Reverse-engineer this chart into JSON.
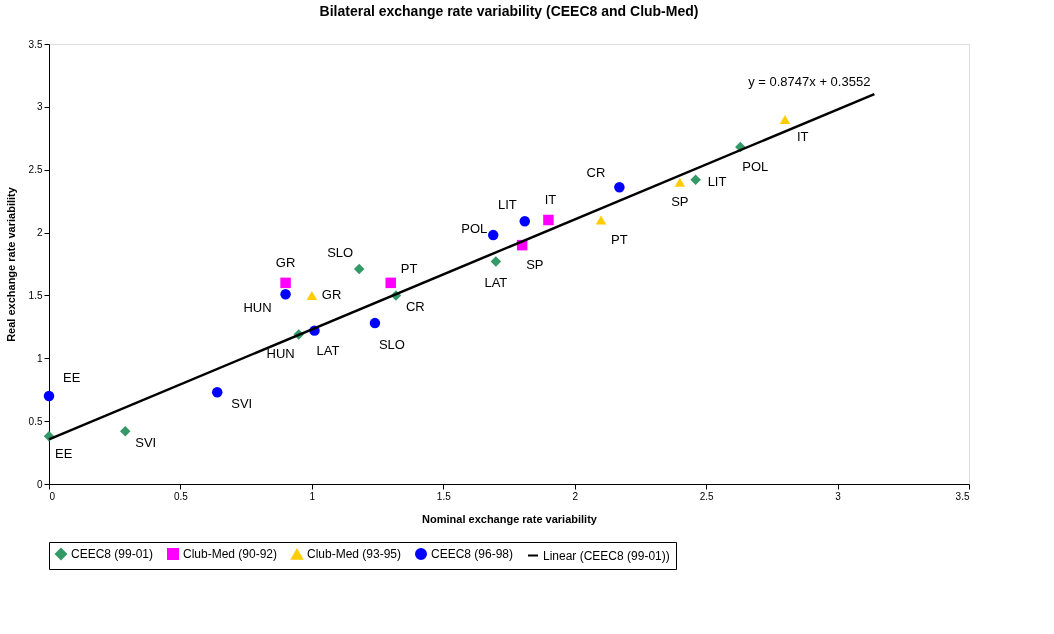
{
  "chart_data": {
    "type": "scatter",
    "title": "Bilateral exchange rate variability (CEEC8 and Club-Med)",
    "xlabel": "Nominal exchange rate variability",
    "ylabel": "Real exchange rate variability",
    "xlim": [
      0,
      3.5
    ],
    "ylim": [
      0,
      3.5
    ],
    "xticks": [
      0,
      0.5,
      1,
      1.5,
      2,
      2.5,
      3,
      3.5
    ],
    "yticks": [
      0,
      0.5,
      1,
      1.5,
      2,
      2.5,
      3,
      3.5
    ],
    "grid": false,
    "legend": "bottom",
    "series": [
      {
        "name": "CEEC8 (99-01)",
        "marker": "diamond",
        "color": "#339966",
        "x": [
          0,
          0.29,
          0.95,
          1.18,
          1.32,
          1.7,
          2.46,
          2.63
        ],
        "values": [
          0.38,
          0.42,
          1.19,
          1.71,
          1.5,
          1.77,
          2.42,
          2.68
        ]
      },
      {
        "name": "Club-Med (90-92)",
        "marker": "square",
        "color": "#ff00ff",
        "x": [
          0.9,
          1.3,
          1.8,
          1.9
        ],
        "values": [
          1.6,
          1.6,
          1.9,
          2.1
        ]
      },
      {
        "name": "Club-Med (93-95)",
        "marker": "triangle",
        "color": "#ffcc00",
        "x": [
          1.0,
          2.1,
          2.4,
          2.8
        ],
        "values": [
          1.5,
          2.1,
          2.4,
          2.9
        ]
      },
      {
        "name": "CEEC8 (96-98)",
        "marker": "circle",
        "color": "#0000ff",
        "x": [
          0,
          0.64,
          0.9,
          1.01,
          1.24,
          1.69,
          1.81,
          2.17
        ],
        "values": [
          0.7,
          0.73,
          1.51,
          1.22,
          1.28,
          1.98,
          2.09,
          2.36
        ]
      },
      {
        "name": "Linear (CEEC8 (99-01))",
        "type": "line",
        "marker": "none",
        "line_style": "solid",
        "color": "#000000",
        "x": [
          0,
          3.14
        ],
        "values": [
          0.3552,
          3.1018
        ]
      }
    ],
    "annotations": [
      {
        "text": "EE",
        "x": 0,
        "y": 0.38
      },
      {
        "text": "SVI",
        "x": 0.29,
        "y": 0.42
      },
      {
        "text": "HUN",
        "x": 0.95,
        "y": 1.19
      },
      {
        "text": "SLO",
        "x": 1.18,
        "y": 1.71
      },
      {
        "text": "CR",
        "x": 1.32,
        "y": 1.5
      },
      {
        "text": "LAT",
        "x": 1.7,
        "y": 1.77
      },
      {
        "text": "LIT",
        "x": 2.46,
        "y": 2.42
      },
      {
        "text": "POL",
        "x": 2.63,
        "y": 2.68
      },
      {
        "text": "GR",
        "x": 0.9,
        "y": 1.6
      },
      {
        "text": "PT",
        "x": 1.3,
        "y": 1.6
      },
      {
        "text": "SP",
        "x": 1.8,
        "y": 1.9
      },
      {
        "text": "IT",
        "x": 1.9,
        "y": 2.1
      },
      {
        "text": "GR",
        "x": 1.0,
        "y": 1.5
      },
      {
        "text": "PT",
        "x": 2.1,
        "y": 2.1
      },
      {
        "text": "SP",
        "x": 2.4,
        "y": 2.4
      },
      {
        "text": "IT",
        "x": 2.8,
        "y": 2.9
      },
      {
        "text": "EE",
        "x": 0,
        "y": 0.7
      },
      {
        "text": "SVI",
        "x": 0.64,
        "y": 0.73
      },
      {
        "text": "HUN",
        "x": 0.9,
        "y": 1.51
      },
      {
        "text": "LAT",
        "x": 1.01,
        "y": 1.22
      },
      {
        "text": "SLO",
        "x": 1.24,
        "y": 1.28
      },
      {
        "text": "POL",
        "x": 1.69,
        "y": 1.98
      },
      {
        "text": "LIT",
        "x": 1.81,
        "y": 2.09
      },
      {
        "text": "CR",
        "x": 2.17,
        "y": 2.36
      },
      {
        "text": "y = 0.8747x + 0.3552",
        "x": 3.14,
        "y": 3.1018
      }
    ]
  }
}
